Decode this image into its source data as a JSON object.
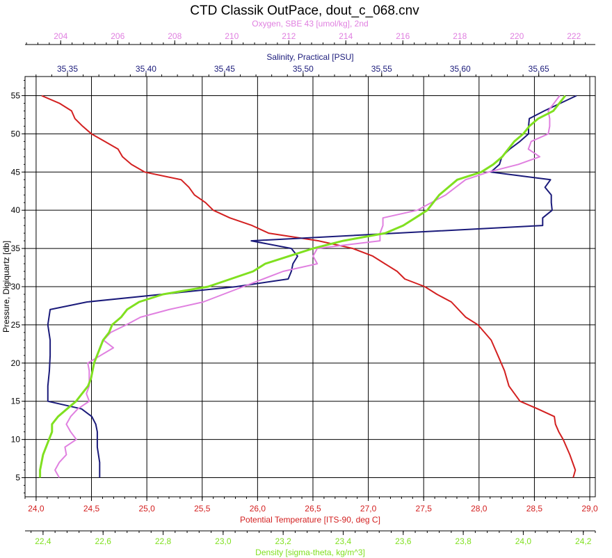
{
  "chart_data": {
    "type": "line",
    "title": "CTD Classik OutPace, dout_c_068.cnv",
    "grid": true,
    "y_axis": {
      "label": "Pressure, Digiquartz [db]",
      "range": [
        57.5,
        2.5
      ],
      "ticks": [
        5,
        10,
        15,
        20,
        25,
        30,
        35,
        40,
        45,
        50,
        55
      ],
      "tick_labels": [
        "5",
        "10",
        "15",
        "20",
        "25",
        "30",
        "35",
        "40",
        "45",
        "50",
        "55"
      ]
    },
    "x_axes": [
      {
        "id": "oxygen",
        "label": "Oxygen, SBE 43 [umol/kg], 2nd",
        "color": "#e080e0",
        "range": [
          202.75,
          222.75
        ],
        "ticks": [
          204,
          206,
          208,
          210,
          212,
          214,
          216,
          218,
          220,
          222
        ],
        "tick_labels": [
          "204",
          "206",
          "208",
          "210",
          "212",
          "214",
          "216",
          "218",
          "220",
          "222"
        ]
      },
      {
        "id": "salinity",
        "label": "Salinity, Practical [PSU]",
        "color": "#1a1a7a",
        "range": [
          35.323,
          35.686
        ],
        "ticks": [
          35.35,
          35.4,
          35.45,
          35.5,
          35.55,
          35.6,
          35.65
        ],
        "tick_labels": [
          "35,35",
          "35,40",
          "35,45",
          "35,50",
          "35,55",
          "35,60",
          "35,65"
        ]
      },
      {
        "id": "temperature",
        "label": "Potential Temperature [ITS-90, deg C]",
        "color": "#d32020",
        "range": [
          23.9,
          29.05
        ],
        "ticks": [
          24.0,
          24.5,
          25.0,
          25.5,
          26.0,
          26.5,
          27.0,
          27.5,
          28.0,
          28.5,
          29.0
        ],
        "tick_labels": [
          "24,0",
          "24,5",
          "25,0",
          "25,5",
          "26,0",
          "26,5",
          "27,0",
          "27,5",
          "28,0",
          "28,5",
          "29,0"
        ]
      },
      {
        "id": "density",
        "label": "Density [sigma-theta, kg/m^3]",
        "color": "#80e020",
        "range": [
          22.34,
          24.24
        ],
        "ticks": [
          22.4,
          22.6,
          22.8,
          23.0,
          23.2,
          23.4,
          23.6,
          23.8,
          24.0,
          24.2
        ],
        "tick_labels": [
          "22,4",
          "22,6",
          "22,8",
          "23,0",
          "23,2",
          "23,4",
          "23,6",
          "23,8",
          "24,0",
          "24,2"
        ]
      }
    ],
    "series": [
      {
        "name": "Potential Temperature",
        "axis": "temperature",
        "color": "#d32020",
        "points": [
          [
            28.85,
            5
          ],
          [
            28.87,
            6
          ],
          [
            28.82,
            8
          ],
          [
            28.76,
            10
          ],
          [
            28.72,
            11
          ],
          [
            28.69,
            12
          ],
          [
            28.68,
            13
          ],
          [
            28.53,
            14
          ],
          [
            28.37,
            15
          ],
          [
            28.27,
            17
          ],
          [
            28.23,
            19
          ],
          [
            28.17,
            21
          ],
          [
            28.11,
            23
          ],
          [
            28.05,
            24
          ],
          [
            27.99,
            25
          ],
          [
            27.88,
            26
          ],
          [
            27.75,
            28
          ],
          [
            27.62,
            29
          ],
          [
            27.51,
            30
          ],
          [
            27.33,
            31
          ],
          [
            27.26,
            32
          ],
          [
            27.15,
            33
          ],
          [
            27.04,
            34
          ],
          [
            26.86,
            35
          ],
          [
            26.55,
            36
          ],
          [
            26.1,
            37
          ],
          [
            25.95,
            38
          ],
          [
            25.75,
            39
          ],
          [
            25.6,
            40
          ],
          [
            25.53,
            41
          ],
          [
            25.43,
            42
          ],
          [
            25.38,
            43
          ],
          [
            25.31,
            44
          ],
          [
            24.98,
            45
          ],
          [
            24.86,
            46
          ],
          [
            24.78,
            47
          ],
          [
            24.74,
            48
          ],
          [
            24.62,
            49
          ],
          [
            24.5,
            50
          ],
          [
            24.42,
            51
          ],
          [
            24.35,
            52
          ],
          [
            24.32,
            53
          ],
          [
            24.21,
            54
          ],
          [
            24.05,
            55
          ]
        ]
      },
      {
        "name": "Salinity",
        "axis": "salinity",
        "color": "#1a1a7a",
        "points": [
          [
            35.3705,
            5
          ],
          [
            35.3705,
            7
          ],
          [
            35.369,
            9
          ],
          [
            35.369,
            11
          ],
          [
            35.368,
            12
          ],
          [
            35.3655,
            13
          ],
          [
            35.359,
            14
          ],
          [
            35.3375,
            15
          ],
          [
            35.3375,
            17
          ],
          [
            35.3385,
            19
          ],
          [
            35.339,
            21
          ],
          [
            35.339,
            23
          ],
          [
            35.3375,
            25
          ],
          [
            35.339,
            27
          ],
          [
            35.3625,
            28
          ],
          [
            35.4575,
            30
          ],
          [
            35.4905,
            31
          ],
          [
            35.4925,
            32
          ],
          [
            35.4935,
            33
          ],
          [
            35.4965,
            34
          ],
          [
            35.4925,
            35
          ],
          [
            35.467,
            36
          ],
          [
            35.6525,
            38
          ],
          [
            35.6525,
            39
          ],
          [
            35.6585,
            40
          ],
          [
            35.658,
            41
          ],
          [
            35.658,
            42
          ],
          [
            35.654,
            43
          ],
          [
            35.6575,
            44
          ],
          [
            35.6195,
            45
          ],
          [
            35.625,
            46
          ],
          [
            35.6265,
            47
          ],
          [
            35.6315,
            48
          ],
          [
            35.638,
            49
          ],
          [
            35.6435,
            50
          ],
          [
            35.6435,
            51
          ],
          [
            35.644,
            52
          ],
          [
            35.6535,
            53
          ],
          [
            35.674,
            55
          ]
        ]
      },
      {
        "name": "Oxygen",
        "axis": "oxygen",
        "color": "#e080e0",
        "points": [
          [
            203.95,
            5
          ],
          [
            203.8,
            6
          ],
          [
            203.95,
            7
          ],
          [
            204.2,
            8
          ],
          [
            204.15,
            9
          ],
          [
            204.55,
            10
          ],
          [
            204.35,
            11
          ],
          [
            204.2,
            12
          ],
          [
            204.35,
            13
          ],
          [
            204.6,
            14
          ],
          [
            205.0,
            15
          ],
          [
            204.9,
            16
          ],
          [
            205.0,
            17
          ],
          [
            205.0,
            18
          ],
          [
            205.0,
            19
          ],
          [
            204.95,
            20
          ],
          [
            205.4,
            21
          ],
          [
            205.85,
            22
          ],
          [
            205.5,
            23
          ],
          [
            205.75,
            24
          ],
          [
            206.3,
            25
          ],
          [
            206.8,
            26
          ],
          [
            207.8,
            27
          ],
          [
            209.0,
            28
          ],
          [
            210.4,
            30
          ],
          [
            211.8,
            32
          ],
          [
            213.0,
            33
          ],
          [
            212.85,
            34
          ],
          [
            213.0,
            35
          ],
          [
            215.2,
            36
          ],
          [
            215.2,
            37
          ],
          [
            215.3,
            38
          ],
          [
            215.3,
            39
          ],
          [
            216.5,
            40
          ],
          [
            217.5,
            42
          ],
          [
            218.2,
            44
          ],
          [
            219.0,
            45
          ],
          [
            220.05,
            46
          ],
          [
            220.8,
            47
          ],
          [
            220.4,
            48
          ],
          [
            220.5,
            49
          ],
          [
            221.1,
            50
          ],
          [
            221.15,
            51
          ],
          [
            221.15,
            52
          ],
          [
            221.1,
            53
          ],
          [
            221.5,
            55
          ]
        ]
      },
      {
        "name": "Density",
        "axis": "density",
        "color": "#80e020",
        "points": [
          [
            22.39,
            5
          ],
          [
            22.39,
            6
          ],
          [
            22.4,
            8
          ],
          [
            22.42,
            10
          ],
          [
            22.43,
            11
          ],
          [
            22.43,
            12
          ],
          [
            22.45,
            13
          ],
          [
            22.48,
            14
          ],
          [
            22.51,
            15
          ],
          [
            22.53,
            16
          ],
          [
            22.55,
            17
          ],
          [
            22.56,
            18
          ],
          [
            22.57,
            20
          ],
          [
            22.58,
            21
          ],
          [
            22.59,
            22
          ],
          [
            22.6,
            23
          ],
          [
            22.62,
            24
          ],
          [
            22.63,
            25
          ],
          [
            22.66,
            26
          ],
          [
            22.68,
            27
          ],
          [
            22.72,
            28
          ],
          [
            22.8,
            29
          ],
          [
            22.95,
            30
          ],
          [
            23.1,
            32
          ],
          [
            23.14,
            33
          ],
          [
            23.22,
            34
          ],
          [
            23.3,
            35
          ],
          [
            23.4,
            36
          ],
          [
            23.54,
            37
          ],
          [
            23.6,
            38
          ],
          [
            23.64,
            39
          ],
          [
            23.68,
            40
          ],
          [
            23.72,
            42
          ],
          [
            23.78,
            44
          ],
          [
            23.86,
            45
          ],
          [
            23.9,
            46
          ],
          [
            23.93,
            47
          ],
          [
            23.95,
            48
          ],
          [
            23.97,
            49
          ],
          [
            24.0,
            50
          ],
          [
            24.02,
            51
          ],
          [
            24.05,
            52
          ],
          [
            24.1,
            53
          ],
          [
            24.14,
            55
          ]
        ]
      }
    ]
  }
}
